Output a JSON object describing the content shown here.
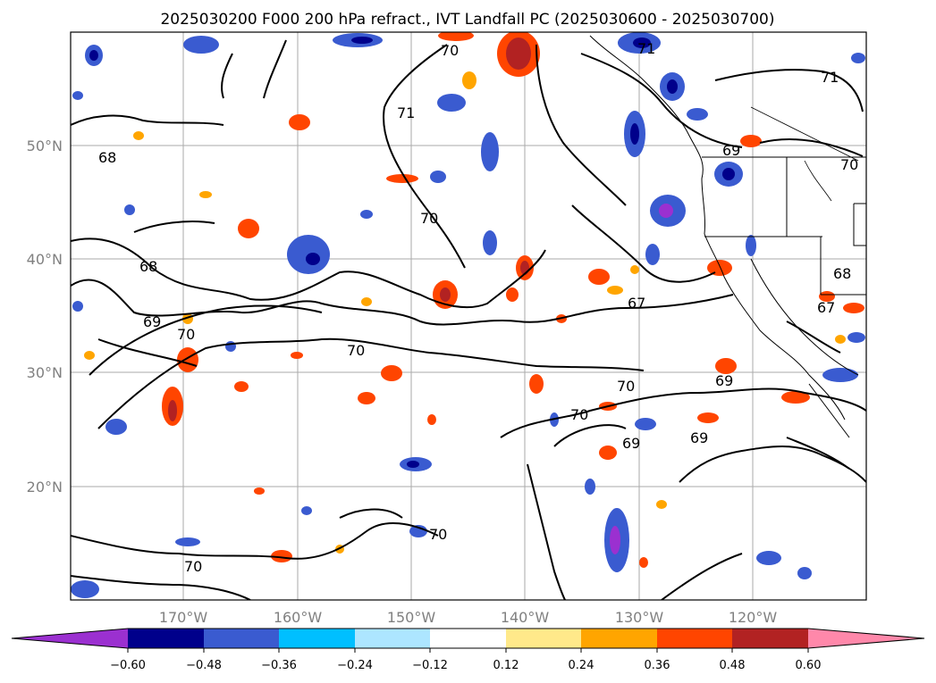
{
  "title": "2025030200 F000 200 hPa refract., IVT Landfall PC (2025030600 - 2025030700)",
  "map": {
    "lat_labels": [
      "50°N",
      "40°N",
      "30°N",
      "20°N"
    ],
    "lon_labels": [
      "170°W",
      "160°W",
      "150°W",
      "140°W",
      "130°W",
      "120°W"
    ],
    "contour_labels": [
      "70",
      "71",
      "71",
      "68",
      "69",
      "71",
      "70",
      "68",
      "69",
      "70",
      "70",
      "67",
      "68",
      "67",
      "70",
      "69",
      "70",
      "69",
      "69",
      "70",
      "70",
      "70"
    ]
  },
  "colorbar": {
    "ticks": [
      "−0.60",
      "−0.48",
      "−0.36",
      "−0.24",
      "−0.12",
      "0.12",
      "0.24",
      "0.36",
      "0.48",
      "0.60"
    ],
    "colors": [
      "#9b30d0",
      "#00008b",
      "#3a5bd0",
      "#00bfff",
      "#ade6ff",
      "#ffffff",
      "#ffe98a",
      "#ffa500",
      "#ff4500",
      "#b22222",
      "#ff88aa"
    ]
  }
}
